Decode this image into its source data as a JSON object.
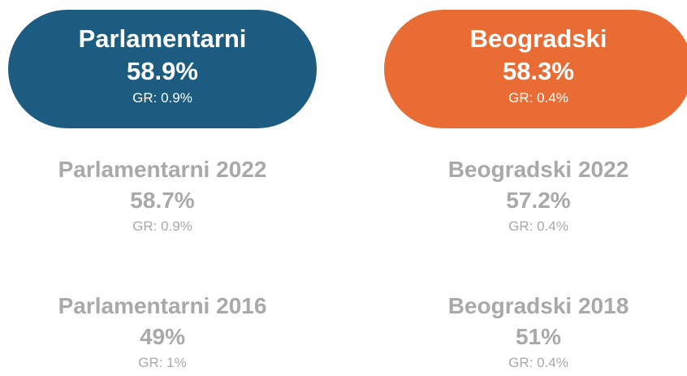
{
  "columns": [
    {
      "current": {
        "title": "Parlamentarni",
        "value": "58.9%",
        "growth": "GR: 0.9%"
      },
      "history": [
        {
          "title": "Parlamentarni 2022",
          "value": "58.7%",
          "growth": "GR: 0.9%"
        },
        {
          "title": "Parlamentarni 2016",
          "value": "49%",
          "growth": "GR: 1%"
        }
      ]
    },
    {
      "current": {
        "title": "Beogradski",
        "value": "58.3%",
        "growth": "GR: 0.4%"
      },
      "history": [
        {
          "title": "Beogradski 2022",
          "value": "57.2%",
          "growth": "GR: 0.4%"
        },
        {
          "title": "Beogradski 2018",
          "value": "51%",
          "growth": "GR: 0.4%"
        }
      ]
    }
  ]
}
